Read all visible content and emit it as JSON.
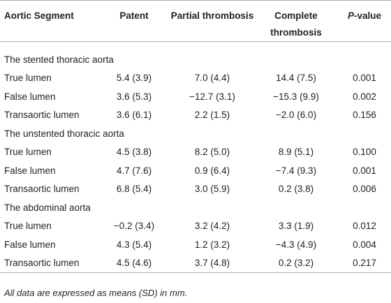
{
  "headers": {
    "segment": "Aortic Segment",
    "patent": "Patent",
    "partial": "Partial thrombosis",
    "complete": "Complete thrombosis",
    "p_italic": "P",
    "p_rest": "-value"
  },
  "sections": [
    {
      "title": "The stented thoracic aorta",
      "rows": [
        {
          "label": "True lumen",
          "patent": "5.4 (3.9)",
          "partial": "7.0 (4.4)",
          "complete": "14.4 (7.5)",
          "p": "0.001"
        },
        {
          "label": "False lumen",
          "patent": "3.6 (5.3)",
          "partial": "−12.7 (3.1)",
          "complete": "−15.3 (9.9)",
          "p": "0.002"
        },
        {
          "label": "Transaortic lumen",
          "patent": "3.6 (6.1)",
          "partial": "2.2 (1.5)",
          "complete": "−2.0 (6.0)",
          "p": "0.156"
        }
      ]
    },
    {
      "title": "The unstented thoracic aorta",
      "rows": [
        {
          "label": "True lumen",
          "patent": "4.5 (3.8)",
          "partial": "8.2 (5.0)",
          "complete": "8.9 (5.1)",
          "p": "0.100"
        },
        {
          "label": "False lumen",
          "patent": "4.7 (7.6)",
          "partial": "0.9 (6.4)",
          "complete": "−7.4 (9.3)",
          "p": "0.001"
        },
        {
          "label": "Transaortic lumen",
          "patent": "6.8 (5.4)",
          "partial": "3.0 (5.9)",
          "complete": "0.2 (3.8)",
          "p": "0.006"
        }
      ]
    },
    {
      "title": "The abdominal aorta",
      "rows": [
        {
          "label": "True lumen",
          "patent": "−0.2 (3.4)",
          "partial": "3.2 (4.2)",
          "complete": "3.3 (1.9)",
          "p": "0.012"
        },
        {
          "label": "False lumen",
          "patent": "4.3 (5.4)",
          "partial": "1.2 (3.2)",
          "complete": "−4.3 (4.9)",
          "p": "0.004"
        },
        {
          "label": "Transaortic lumen",
          "patent": "4.5 (4.6)",
          "partial": "3.7 (4.8)",
          "complete": "0.2 (3.2)",
          "p": "0.217"
        }
      ]
    }
  ],
  "footnote": "All data are expressed as means (SD) in mm."
}
